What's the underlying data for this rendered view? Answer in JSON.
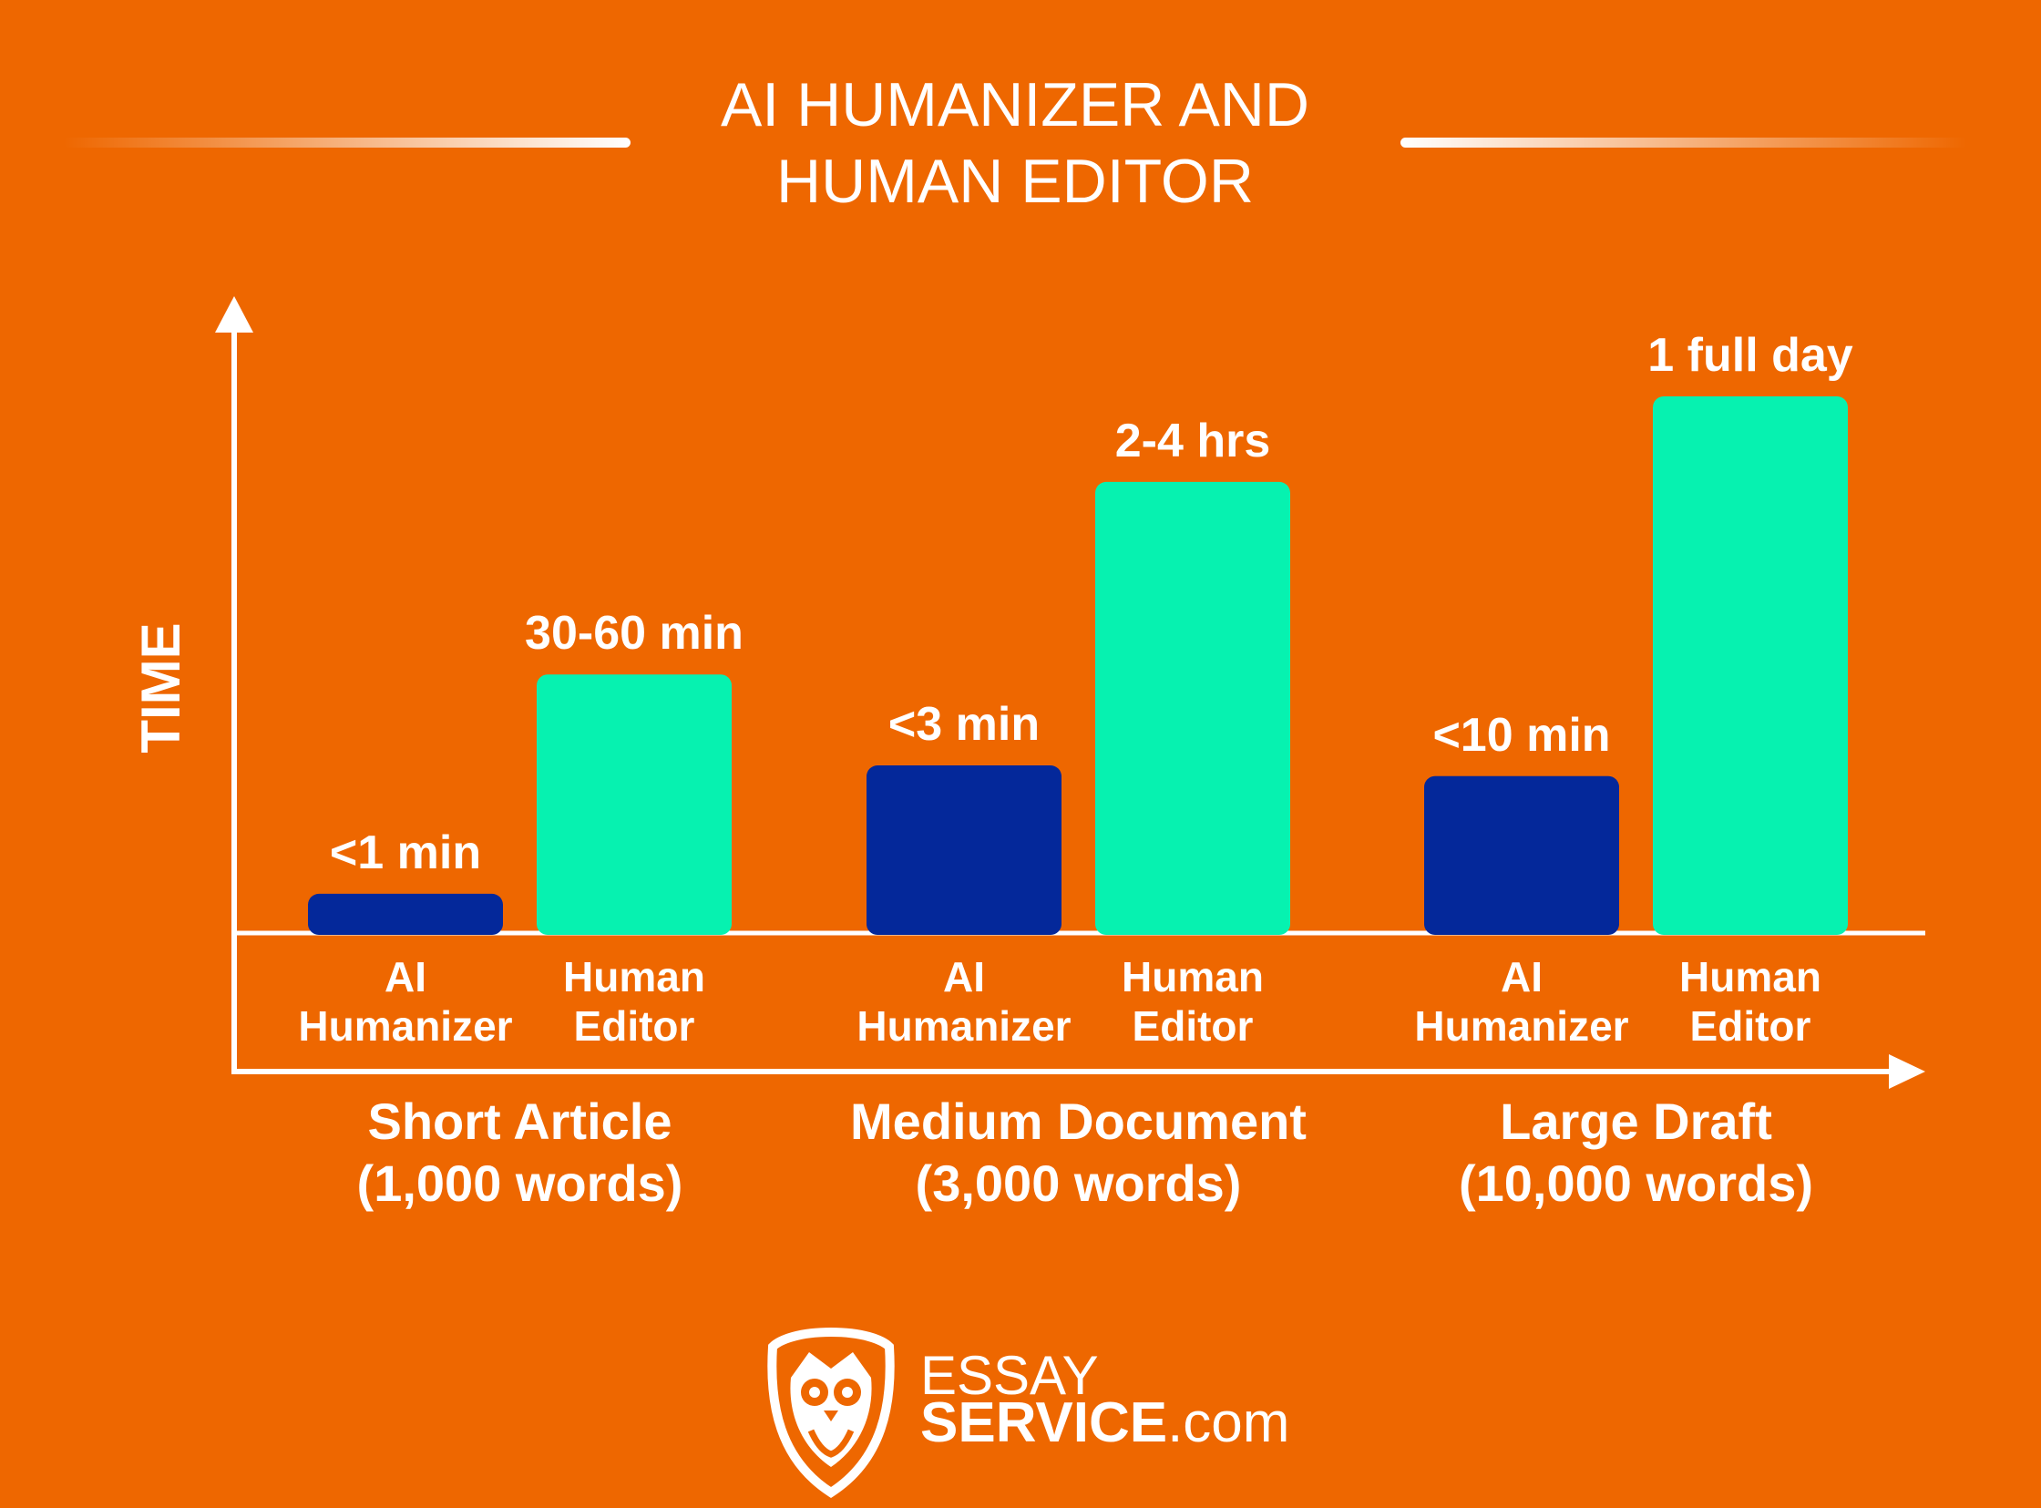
{
  "title_line1": "AI HUMANIZER AND",
  "title_line2": "HUMAN EDITOR",
  "logo": {
    "line1": "ESSAY",
    "line2_bold": "SERVICE",
    "line2_rest": ".com",
    "icon": "owl-shield-icon"
  },
  "colors": {
    "background": "#EE6700",
    "ai_bar": "#04289A",
    "human_bar": "#06F2B0",
    "text": "#FFFFFF"
  },
  "chart_data": {
    "type": "bar",
    "ylabel": "TIME",
    "xlabel": "",
    "y_scale": "qualitative (not to scale)",
    "grid": false,
    "legend": "none",
    "groups": [
      {
        "category": "Short Article",
        "sublabel": "(1,000 words)",
        "bars": [
          {
            "series": "AI Humanizer",
            "label_line1": "AI",
            "label_line2": "Humanizer",
            "value_label": "<1 min",
            "relative_height": 0.07
          },
          {
            "series": "Human Editor",
            "label_line1": "Human",
            "label_line2": "Editor",
            "value_label": "30-60 min",
            "relative_height": 0.48
          }
        ]
      },
      {
        "category": "Medium Document",
        "sublabel": "(3,000 words)",
        "bars": [
          {
            "series": "AI Humanizer",
            "label_line1": "AI",
            "label_line2": "Humanizer",
            "value_label": "<3 min",
            "relative_height": 0.31
          },
          {
            "series": "Human Editor",
            "label_line1": "Human",
            "label_line2": "Editor",
            "value_label": "2-4 hrs",
            "relative_height": 0.84
          }
        ]
      },
      {
        "category": "Large Draft",
        "sublabel": "(10,000 words)",
        "bars": [
          {
            "series": "AI Humanizer",
            "label_line1": "AI",
            "label_line2": "Humanizer",
            "value_label": "<10 min",
            "relative_height": 0.29
          },
          {
            "series": "Human Editor",
            "label_line1": "Human",
            "label_line2": "Editor",
            "value_label": "1 full day",
            "relative_height": 1.0
          }
        ]
      }
    ]
  }
}
